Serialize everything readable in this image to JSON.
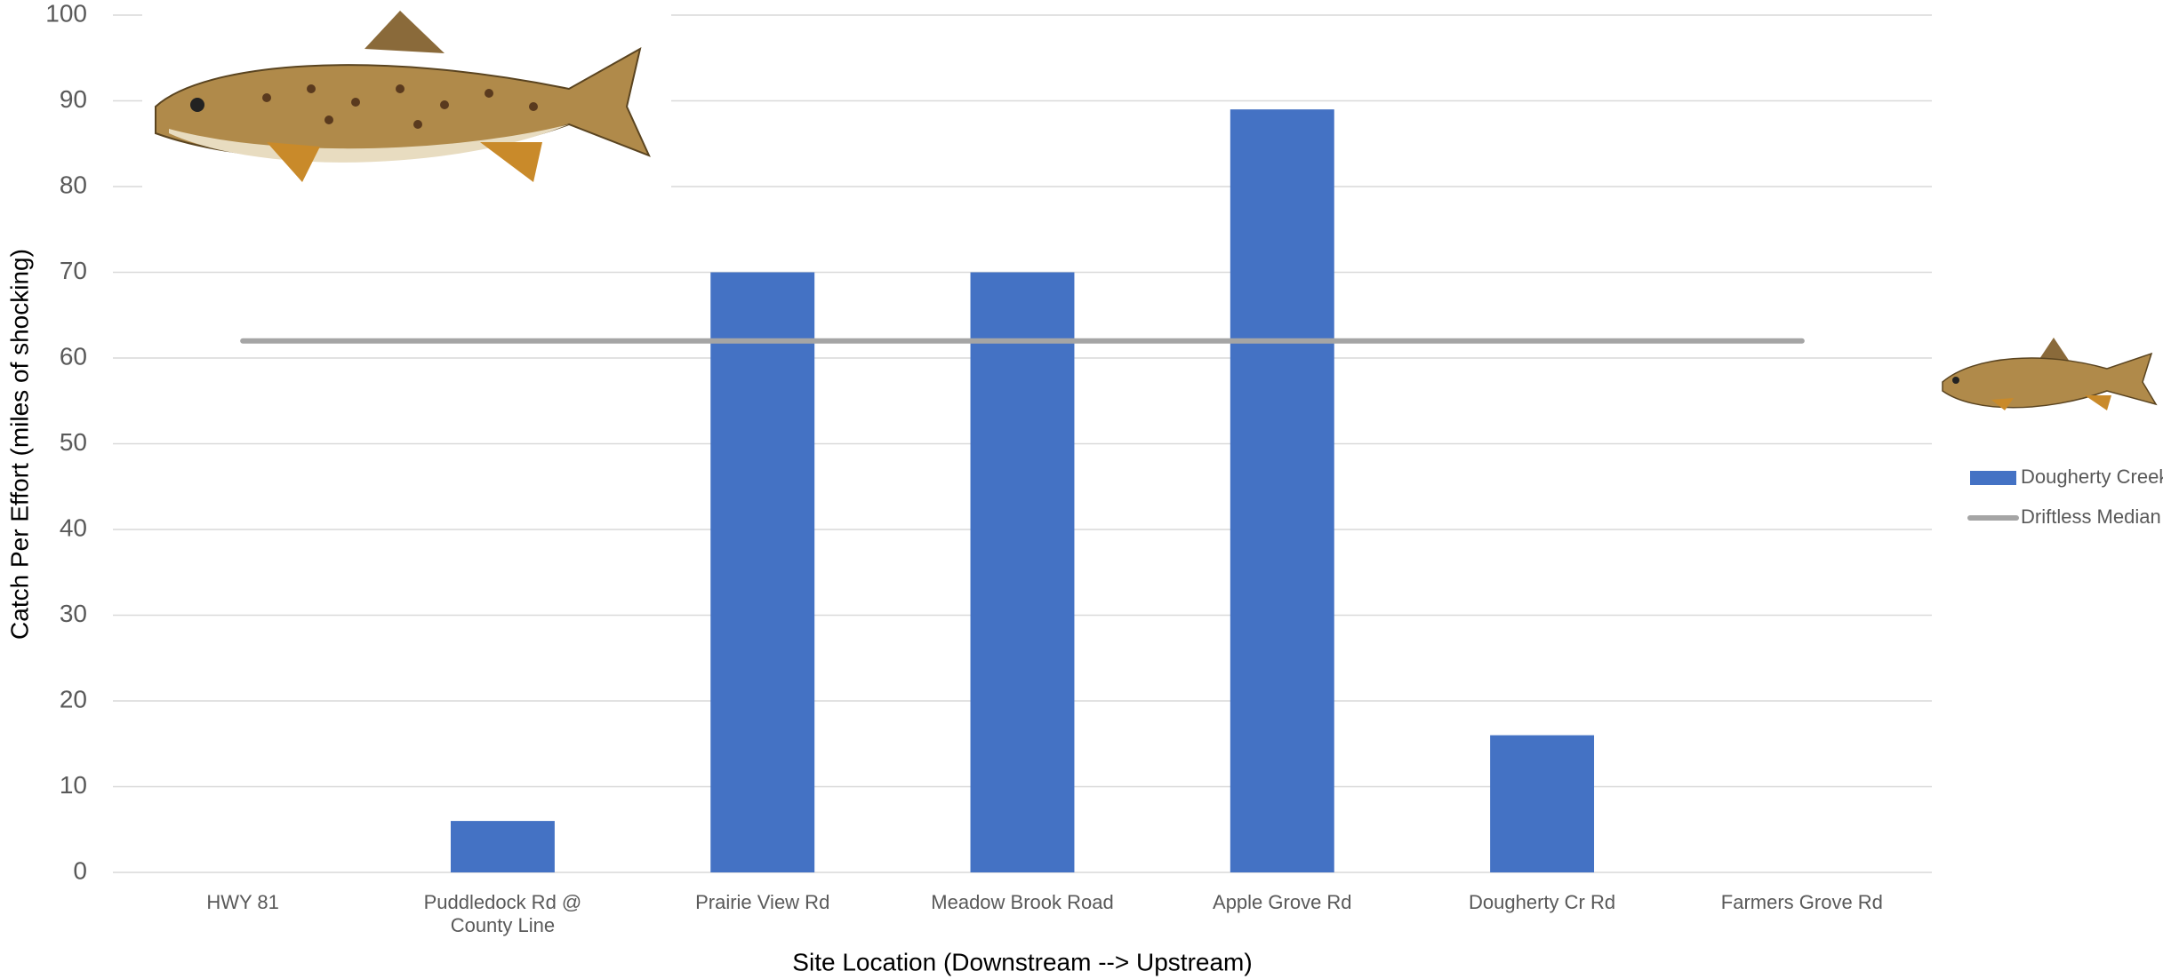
{
  "chart_data": {
    "type": "bar",
    "y_label": "Catch Per Effort (miles of shocking)",
    "x_label": "Site Location (Downstream --> Upstream)",
    "categories": [
      "HWY 81",
      "Puddledock Rd @ County Line",
      "Prairie View Rd",
      "Meadow Brook Road",
      "Apple Grove Rd",
      "Dougherty Cr Rd",
      "Farmers Grove Rd"
    ],
    "series": [
      {
        "name": "Dougherty Creek",
        "type": "bar",
        "color": "#4472c4",
        "values": [
          0,
          6,
          70,
          70,
          89,
          16,
          0
        ]
      },
      {
        "name": "Driftless Median",
        "type": "line",
        "color": "#a5a5a5",
        "values": [
          62,
          62,
          62,
          62,
          62,
          62,
          62
        ]
      }
    ],
    "ylim": [
      0,
      100
    ],
    "yticks": [
      0,
      10,
      20,
      30,
      40,
      50,
      60,
      70,
      80,
      90,
      100
    ],
    "grid": true,
    "legend": "right"
  }
}
